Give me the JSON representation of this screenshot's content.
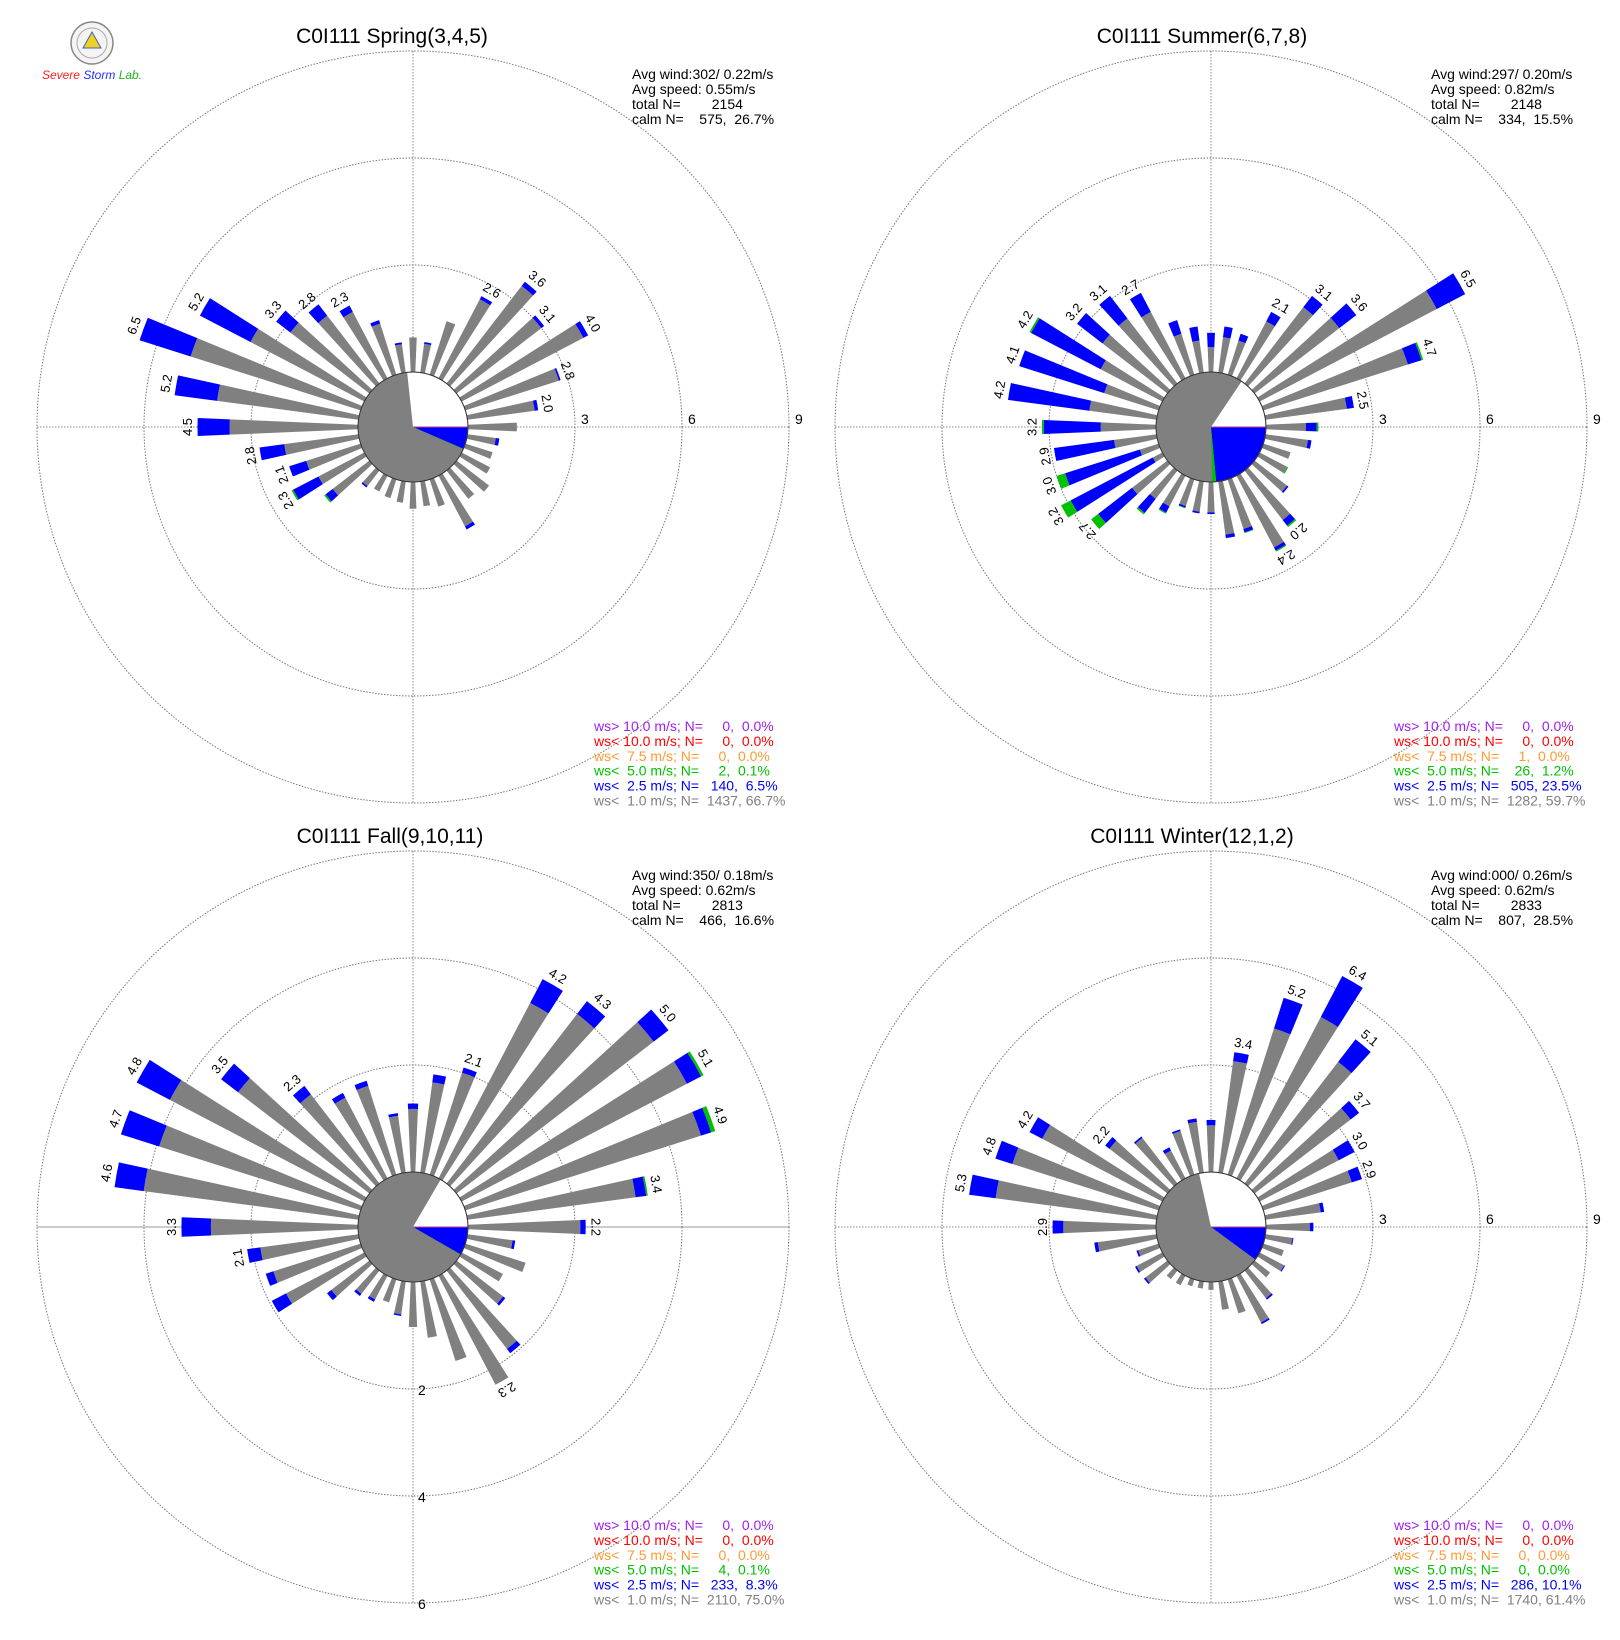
{
  "logo_text": "Severe Storm Lab.",
  "colors": {
    "gray": "#808080",
    "blue": "#0000ff",
    "green": "#00c000",
    "orange": "#ff9933",
    "red": "#ff0000",
    "purple": "#a020f0",
    "calm": "#ffffff"
  },
  "chart_data": [
    {
      "type": "wind-rose",
      "title": "C0I111 Spring(3,4,5)",
      "stats": [
        "Avg wind:302/ 0.22m/s",
        "Avg speed: 0.55m/s",
        "total N=        2154",
        "calm N=    575,  26.7%"
      ],
      "legend": [
        "ws> 10.0 m/s; N=     0,  0.0%",
        "ws< 10.0 m/s; N=     0,  0.0%",
        "ws<  7.5 m/s; N=     0,  0.0%",
        "ws<  5.0 m/s; N=     2,  0.1%",
        "ws<  2.5 m/s; N=   140,  6.5%",
        "ws<  1.0 m/s; N=  1437, 66.7%"
      ],
      "pie_percent": {
        "calm": 26.7,
        "ws_lt_1": 66.7,
        "ws_lt_2_5": 6.5,
        "ws_lt_5": 0.1
      },
      "rings": [
        3,
        6,
        9
      ],
      "directions_deg_step": 10,
      "total": [
        0.97,
        0.86,
        1.57,
        2.6,
        3.6,
        3.1,
        4.0,
        2.8,
        2.0,
        1.37,
        0.9,
        0.8,
        0.9,
        1.15,
        1.0,
        1.7,
        0.8,
        0.7,
        0.75,
        0.6,
        0.55,
        0.5,
        0.6,
        1.6,
        2.3,
        2.1,
        2.8,
        4.5,
        5.2,
        6.5,
        5.2,
        3.3,
        2.8,
        2.3,
        1.6,
        0.85
      ],
      "blue": [
        0,
        0.05,
        0,
        0.1,
        0.15,
        0.1,
        0.15,
        0.05,
        0.1,
        0,
        0.1,
        0,
        0,
        0,
        0,
        0.1,
        0,
        0,
        0,
        0,
        0,
        0,
        0.05,
        0.25,
        0.8,
        0.5,
        0.7,
        0.9,
        1.2,
        1.5,
        1.6,
        0.5,
        0.4,
        0.2,
        0.1,
        0.05
      ],
      "green": [
        0,
        0,
        0,
        0,
        0,
        0,
        0,
        0,
        0,
        0,
        0,
        0,
        0,
        0,
        0,
        0,
        0,
        0,
        0,
        0,
        0,
        0,
        0,
        0.05,
        0.05,
        0,
        0,
        0,
        0,
        0,
        0,
        0,
        0,
        0,
        0,
        0
      ]
    },
    {
      "type": "wind-rose",
      "title": "C0I111 Summer(6,7,8)",
      "stats": [
        "Avg wind:297/ 0.20m/s",
        "Avg speed: 0.82m/s",
        "total N=        2148",
        "calm N=    334,  15.5%"
      ],
      "legend": [
        "ws> 10.0 m/s; N=     0,  0.0%",
        "ws< 10.0 m/s; N=     0,  0.0%",
        "ws<  7.5 m/s; N=     1,  0.0%",
        "ws<  5.0 m/s; N=    26,  1.2%",
        "ws<  2.5 m/s; N=   505, 23.5%",
        "ws<  1.0 m/s; N=  1282, 59.7%"
      ],
      "pie_percent": {
        "calm": 15.5,
        "ws_lt_1": 59.7,
        "ws_lt_2_5": 23.5,
        "ws_lt_5": 1.2
      },
      "rings": [
        3,
        6,
        9
      ],
      "directions_deg_step": 10,
      "total": [
        1.1,
        1.3,
        1.2,
        2.1,
        3.1,
        3.6,
        6.5,
        4.7,
        2.5,
        1.47,
        1.3,
        0.8,
        0.9,
        1.2,
        2.0,
        2.4,
        1.58,
        1.6,
        0.9,
        0.9,
        0.85,
        1.2,
        1.55,
        2.7,
        3.2,
        3.0,
        2.9,
        3.2,
        4.2,
        4.1,
        4.2,
        3.2,
        3.1,
        2.7,
        1.6,
        1.3
      ],
      "blue": [
        0.4,
        0.3,
        0.2,
        0.3,
        0.4,
        0.6,
        0.9,
        0.4,
        0.2,
        0.3,
        0.1,
        0,
        0,
        0.05,
        0.2,
        0.1,
        0.1,
        0.1,
        0.05,
        0.05,
        0.05,
        0.2,
        0.5,
        1.2,
        2.6,
        2.2,
        1.7,
        1.6,
        2.3,
        2.5,
        2.2,
        0.9,
        0.8,
        0.6,
        0.4,
        0.4
      ],
      "green": [
        0,
        0,
        0,
        0,
        0,
        0,
        0,
        0.05,
        0,
        0.05,
        0,
        0,
        0.03,
        0,
        0.05,
        0.03,
        0.02,
        0,
        0,
        0,
        0.02,
        0.03,
        0.05,
        0.25,
        0.3,
        0.25,
        0,
        0.05,
        0,
        0,
        0.05,
        0,
        0,
        0,
        0,
        0
      ]
    },
    {
      "type": "wind-rose",
      "title": "C0I111 Fall(9,10,11)",
      "stats": [
        "Avg wind:350/ 0.18m/s",
        "Avg speed: 0.62m/s",
        "total N=        2813",
        "calm N=    466,  16.6%"
      ],
      "legend": [
        "ws> 10.0 m/s; N=     0,  0.0%",
        "ws< 10.0 m/s; N=     0,  0.0%",
        "ws<  7.5 m/s; N=     0,  0.0%",
        "ws<  5.0 m/s; N=     4,  0.1%",
        "ws<  2.5 m/s; N=   233,  8.3%",
        "ws<  1.0 m/s; N=  2110, 75.0%"
      ],
      "pie_percent": {
        "calm": 16.6,
        "ws_lt_1": 75.0,
        "ws_lt_2_5": 8.3,
        "ws_lt_5": 0.1
      },
      "rings": [
        2,
        4,
        6
      ],
      "directions_deg_step": 10,
      "total": [
        1.28,
        1.85,
        2.1,
        4.2,
        4.3,
        5.0,
        5.1,
        4.9,
        3.4,
        2.2,
        0.9,
        1.18,
        0.87,
        1.15,
        1.95,
        2.3,
        1.6,
        1.06,
        0.84,
        0.65,
        0.45,
        0.55,
        0.6,
        1.0,
        1.95,
        1.86,
        2.1,
        3.3,
        4.6,
        4.7,
        4.8,
        3.5,
        2.3,
        1.8,
        1.84,
        1.12
      ],
      "blue": [
        0.1,
        0.15,
        0.1,
        0.5,
        0.3,
        0.35,
        0.3,
        0.2,
        0.2,
        0.1,
        0.05,
        0,
        0,
        0.05,
        0.1,
        0,
        0,
        0,
        0,
        0.03,
        0,
        0.05,
        0.05,
        0.1,
        0.3,
        0.15,
        0.25,
        0.55,
        0.55,
        0.75,
        0.7,
        0.4,
        0.2,
        0.1,
        0.1,
        0.05
      ],
      "green": [
        0,
        0,
        0,
        0,
        0,
        0,
        0.05,
        0.08,
        0.03,
        0,
        0,
        0,
        0,
        0,
        0,
        0,
        0,
        0,
        0,
        0,
        0,
        0,
        0,
        0,
        0,
        0,
        0,
        0,
        0,
        0,
        0,
        0,
        0,
        0,
        0,
        0
      ]
    },
    {
      "type": "wind-rose",
      "title": "C0I111 Winter(12,1,2)",
      "stats": [
        "Avg wind:000/ 0.26m/s",
        "Avg speed: 0.62m/s",
        "total N=        2833",
        "calm N=    807,  28.5%"
      ],
      "legend": [
        "ws> 10.0 m/s; N=     0,  0.0%",
        "ws< 10.0 m/s; N=     0,  0.0%",
        "ws<  7.5 m/s; N=     0,  0.0%",
        "ws<  5.0 m/s; N=     0,  0.0%",
        "ws<  2.5 m/s; N=   286, 10.1%",
        "ws<  1.0 m/s; N=  1740, 61.4%"
      ],
      "pie_percent": {
        "calm": 28.5,
        "ws_lt_1": 61.4,
        "ws_lt_2_5": 10.1,
        "ws_lt_5": 0.0
      },
      "rings": [
        3,
        6,
        9
      ],
      "directions_deg_step": 10,
      "total": [
        1.46,
        3.4,
        5.2,
        6.4,
        5.1,
        3.7,
        3.0,
        2.9,
        1.66,
        1.33,
        0.79,
        0.6,
        0.8,
        0.55,
        1.03,
        1.53,
        1.0,
        0.8,
        0.22,
        0.2,
        0.2,
        0.3,
        0.3,
        0.83,
        0.86,
        0.65,
        1.76,
        2.9,
        5.3,
        4.8,
        4.2,
        2.2,
        1.66,
        0.98,
        1.33,
        1.53
      ],
      "blue": [
        0.15,
        0.25,
        0.9,
        1.3,
        0.8,
        0.3,
        0.5,
        0.3,
        0.1,
        0.1,
        0.03,
        0,
        0.03,
        0,
        0.05,
        0.05,
        0,
        0,
        0,
        0,
        0,
        0,
        0,
        0.05,
        0.05,
        0.05,
        0.1,
        0.3,
        0.75,
        0.5,
        0.4,
        0.15,
        0.05,
        0.1,
        0.05,
        0.1
      ],
      "green": [
        0,
        0,
        0,
        0,
        0,
        0,
        0,
        0,
        0,
        0,
        0,
        0,
        0,
        0,
        0,
        0,
        0,
        0,
        0,
        0,
        0,
        0,
        0,
        0,
        0,
        0,
        0,
        0,
        0,
        0,
        0,
        0,
        0,
        0,
        0,
        0
      ]
    }
  ]
}
